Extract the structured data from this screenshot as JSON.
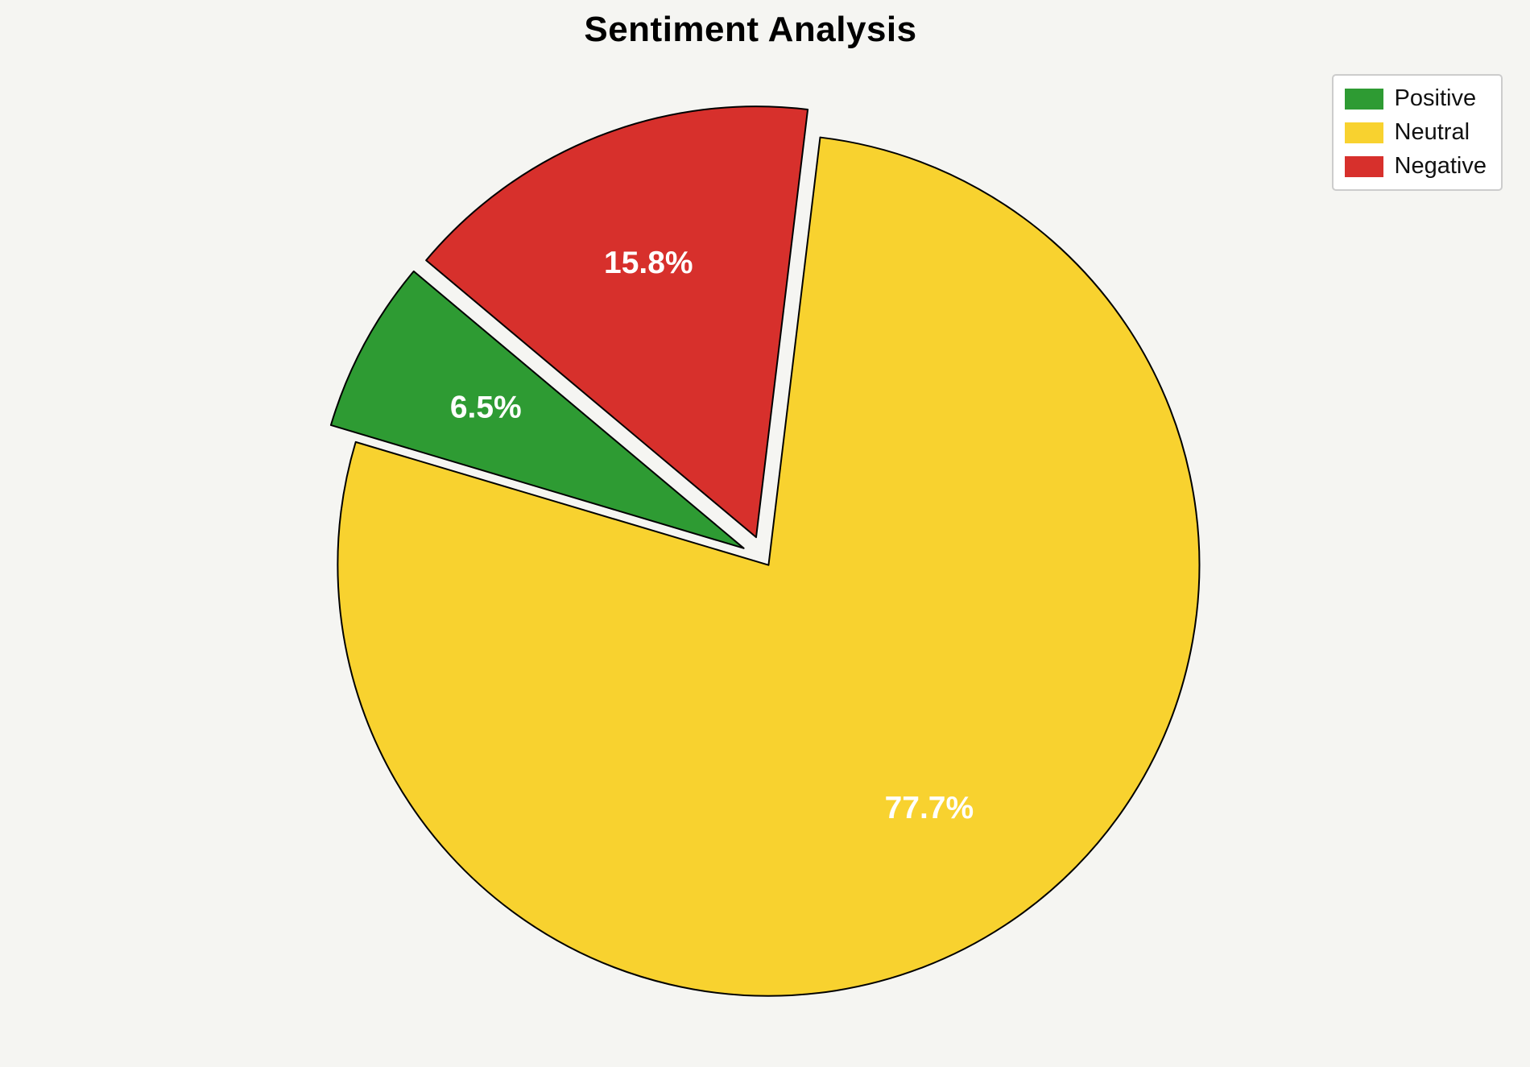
{
  "chart_data": {
    "type": "pie",
    "title": "Sentiment Analysis",
    "categories": [
      "Positive",
      "Neutral",
      "Negative"
    ],
    "values": [
      6.5,
      77.7,
      15.8
    ],
    "pct_labels": [
      "6.5%",
      "77.7%",
      "15.8%"
    ],
    "colors": [
      "#2E9B33",
      "#F8D22F",
      "#D7302C"
    ],
    "explode": [
      0.056,
      0.015,
      0.056
    ],
    "start_angle": 140,
    "counterclockwise": true,
    "pct_label_color": "#ffffff",
    "edge_color": "#000000",
    "background": "#F5F5F2",
    "title_color": "#000000",
    "legend": {
      "position": "upper right",
      "entries": [
        "Positive",
        "Neutral",
        "Negative"
      ]
    }
  }
}
